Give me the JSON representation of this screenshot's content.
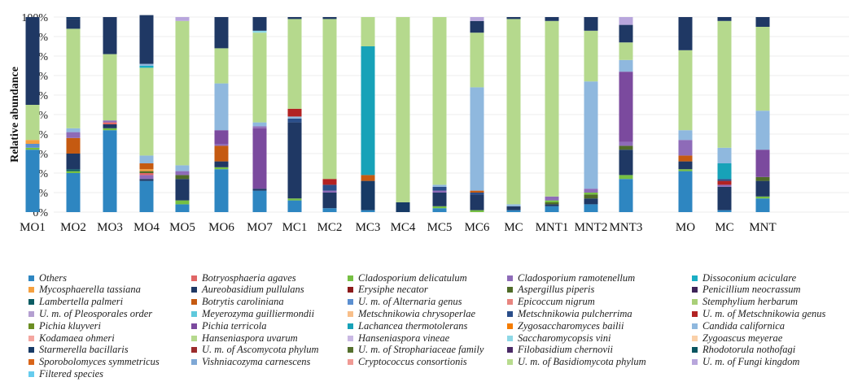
{
  "chart_data": {
    "type": "bar",
    "stacked": true,
    "ylabel": "Relative abundance",
    "yticks": [
      "0%",
      "10%",
      "20%",
      "30%",
      "40%",
      "50%",
      "60%",
      "70%",
      "80%",
      "90%",
      "100%"
    ],
    "ylim": [
      0,
      100
    ],
    "categories": [
      "MO1",
      "MO2",
      "MO3",
      "MO4",
      "MO5",
      "MO6",
      "MO7",
      "MC1",
      "MC2",
      "MC3",
      "MC4",
      "MC5",
      "MC6",
      "MC",
      "MNT1",
      "MNT2",
      "MNT3",
      "MO",
      "MC",
      "MNT"
    ],
    "species": [
      {
        "name": "Others",
        "color": "#2e86c1"
      },
      {
        "name": "Botryosphaeria agaves",
        "color": "#e06666"
      },
      {
        "name": "Cladosporium delicatulum",
        "color": "#76c043"
      },
      {
        "name": "Cladosporium ramotenellum",
        "color": "#8e6bb8"
      },
      {
        "name": "Dissoconium aciculare",
        "color": "#1aaec4"
      },
      {
        "name": "Mycosphaerella tassiana",
        "color": "#f5a040"
      },
      {
        "name": "Aureobasidium pullulans",
        "color": "#1f3864"
      },
      {
        "name": "Erysiphe necator",
        "color": "#8b1a1a"
      },
      {
        "name": "Aspergillus piperis",
        "color": "#4f6b28"
      },
      {
        "name": "Penicillium neocrassum",
        "color": "#3d2358"
      },
      {
        "name": "Lambertella palmeri",
        "color": "#0c5c63"
      },
      {
        "name": "Botrytis caroliniana",
        "color": "#c55a11"
      },
      {
        "name": "U. m. of Alternaria genus",
        "color": "#5b8fd0"
      },
      {
        "name": "Epicoccum nigrum",
        "color": "#e8857f"
      },
      {
        "name": "Stemphylium herbarum",
        "color": "#a9cf78"
      },
      {
        "name": "U. m. of Pleosporales order",
        "color": "#b49fd1"
      },
      {
        "name": "Meyerozyma guilliermondii",
        "color": "#5fc9dc"
      },
      {
        "name": "Metschnikowia chrysoperlae",
        "color": "#f8bf8a"
      },
      {
        "name": "Metschnikowia pulcherrima",
        "color": "#2a4e8a"
      },
      {
        "name": "U. m. of Metschnikowia genus",
        "color": "#b22222"
      },
      {
        "name": "Pichia kluyveri",
        "color": "#6b8e23"
      },
      {
        "name": "Pichia terricola",
        "color": "#7b4a9e"
      },
      {
        "name": "Lachancea thermotolerans",
        "color": "#17a2b8"
      },
      {
        "name": "Zygosaccharomyces bailii",
        "color": "#f57c00"
      },
      {
        "name": "Candida californica",
        "color": "#8fb8de"
      },
      {
        "name": "Kodamaea ohmeri",
        "color": "#f4a6a0"
      },
      {
        "name": "Hanseniaspora uvarum",
        "color": "#b5d98d"
      },
      {
        "name": "Hanseniaspora vineae",
        "color": "#c9b8e3"
      },
      {
        "name": "Saccharomycopsis vini",
        "color": "#8ed8e6"
      },
      {
        "name": "Zygoascus meyerae",
        "color": "#fad0a8"
      },
      {
        "name": "Starmerella bacillaris",
        "color": "#173a66"
      },
      {
        "name": "U. m. of Ascomycota phylum",
        "color": "#9b2c2c"
      },
      {
        "name": "U. m. of Strophariaceae family",
        "color": "#55702e"
      },
      {
        "name": "Filobasidium chernovii",
        "color": "#4a2a66"
      },
      {
        "name": "Rhodotorula nothofagi",
        "color": "#0a5560"
      },
      {
        "name": "Sporobolomyces symmetricus",
        "color": "#d9651a"
      },
      {
        "name": "Vishniacozyma carnescens",
        "color": "#7fa8d6"
      },
      {
        "name": "Cryptococcus consortionis",
        "color": "#f09a94"
      },
      {
        "name": "U. m. of Basidiomycota phylum",
        "color": "#b8dc8e"
      },
      {
        "name": "U. m. of Fungi kingdom",
        "color": "#b8a6dc"
      },
      {
        "name": "Filtered species",
        "color": "#66ccee"
      }
    ],
    "bars": [
      [
        [
          "Others",
          32
        ],
        [
          "Cladosporium delicatulum",
          1
        ],
        [
          "U. m. of Alternaria genus",
          2
        ],
        [
          "Mycosphaerella tassiana",
          2
        ],
        [
          "Hanseniaspora uvarum",
          18
        ],
        [
          "Aureobasidium pullulans",
          45
        ]
      ],
      [
        [
          "Others",
          20
        ],
        [
          "Cladosporium delicatulum",
          1
        ],
        [
          "Lambertella palmeri",
          1
        ],
        [
          "Aureobasidium pullulans",
          8
        ],
        [
          "Botrytis caroliniana",
          8
        ],
        [
          "Cladosporium ramotenellum",
          3
        ],
        [
          "Candida californica",
          2
        ],
        [
          "Hanseniaspora uvarum",
          51
        ],
        [
          "Aureobasidium pullulans",
          5
        ],
        [
          "Starmerella bacillaris",
          1
        ]
      ],
      [
        [
          "Others",
          42
        ],
        [
          "Cladosporium delicatulum",
          1
        ],
        [
          "Aureobasidium pullulans",
          2
        ],
        [
          "Botryosphaeria agaves",
          1
        ],
        [
          "Cladosporium ramotenellum",
          1
        ],
        [
          "Hanseniaspora uvarum",
          34
        ],
        [
          "Aureobasidium pullulans",
          19
        ]
      ],
      [
        [
          "Others",
          16
        ],
        [
          "Aureobasidium pullulans",
          1
        ],
        [
          "Cladosporium ramotenellum",
          2
        ],
        [
          "Botryosphaeria agaves",
          1
        ],
        [
          "Aspergillus piperis",
          1
        ],
        [
          "Mycosphaerella tassiana",
          1
        ],
        [
          "Botrytis caroliniana",
          3
        ],
        [
          "Candida californica",
          4
        ],
        [
          "Hanseniaspora uvarum",
          45
        ],
        [
          "Dissoconium aciculare",
          1
        ],
        [
          "Candida californica",
          1
        ],
        [
          "Aureobasidium pullulans",
          25
        ]
      ],
      [
        [
          "Others",
          4
        ],
        [
          "Cladosporium delicatulum",
          2
        ],
        [
          "Aureobasidium pullulans",
          11
        ],
        [
          "Aspergillus piperis",
          2
        ],
        [
          "Cladosporium ramotenellum",
          2
        ],
        [
          "Candida californica",
          3
        ],
        [
          "Hanseniaspora uvarum",
          74
        ],
        [
          "U. m. of Fungi kingdom",
          2
        ]
      ],
      [
        [
          "Others",
          22
        ],
        [
          "Cladosporium delicatulum",
          1
        ],
        [
          "Aureobasidium pullulans",
          3
        ],
        [
          "Botrytis caroliniana",
          8
        ],
        [
          "Cladosporium ramotenellum",
          1
        ],
        [
          "Pichia terricola",
          7
        ],
        [
          "Candida californica",
          24
        ],
        [
          "Hanseniaspora uvarum",
          18
        ],
        [
          "Aureobasidium pullulans",
          16
        ]
      ],
      [
        [
          "Others",
          11
        ],
        [
          "Aureobasidium pullulans",
          1
        ],
        [
          "Pichia terricola",
          31
        ],
        [
          "Cladosporium ramotenellum",
          1
        ],
        [
          "Candida californica",
          2
        ],
        [
          "Hanseniaspora uvarum",
          46
        ],
        [
          "Saccharomycopsis vini",
          1
        ],
        [
          "Aureobasidium pullulans",
          7
        ]
      ],
      [
        [
          "Others",
          6
        ],
        [
          "Cladosporium delicatulum",
          1
        ],
        [
          "Aureobasidium pullulans",
          39
        ],
        [
          "Metschnikowia pulcherrima",
          2
        ],
        [
          "Candida californica",
          1
        ],
        [
          "U. m. of Metschnikowia genus",
          4
        ],
        [
          "Hanseniaspora uvarum",
          46
        ],
        [
          "Aureobasidium pullulans",
          1
        ]
      ],
      [
        [
          "Others",
          2
        ],
        [
          "Aureobasidium pullulans",
          8
        ],
        [
          "Cladosporium ramotenellum",
          1
        ],
        [
          "Metschnikowia pulcherrima",
          3
        ],
        [
          "U. m. of Metschnikowia genus",
          3
        ],
        [
          "Hanseniaspora uvarum",
          82
        ],
        [
          "Aureobasidium pullulans",
          1
        ]
      ],
      [
        [
          "Others",
          1
        ],
        [
          "Starmerella bacillaris",
          15
        ],
        [
          "Botrytis caroliniana",
          3
        ],
        [
          "Lachancea thermotolerans",
          66
        ],
        [
          "Hanseniaspora uvarum",
          15
        ]
      ],
      [
        [
          "Starmerella bacillaris",
          5
        ],
        [
          "Hanseniaspora uvarum",
          95
        ]
      ],
      [
        [
          "Others",
          2
        ],
        [
          "Cladosporium delicatulum",
          1
        ],
        [
          "Aureobasidium pullulans",
          7
        ],
        [
          "Cladosporium ramotenellum",
          1
        ],
        [
          "Metschnikowia pulcherrima",
          2
        ],
        [
          "Candida californica",
          1
        ],
        [
          "Hanseniaspora uvarum",
          86
        ]
      ],
      [
        [
          "Cladosporium delicatulum",
          1
        ],
        [
          "Aureobasidium pullulans",
          8
        ],
        [
          "Metschnikowia pulcherrima",
          1
        ],
        [
          "Botrytis caroliniana",
          1
        ],
        [
          "Candida californica",
          53
        ],
        [
          "Hanseniaspora uvarum",
          28
        ],
        [
          "Aureobasidium pullulans",
          6
        ],
        [
          "U. m. of Fungi kingdom",
          2
        ]
      ],
      [
        [
          "Others",
          1
        ],
        [
          "Aureobasidium pullulans",
          2
        ],
        [
          "Candida californica",
          1
        ],
        [
          "Hanseniaspora uvarum",
          95
        ],
        [
          "Aureobasidium pullulans",
          1
        ]
      ],
      [
        [
          "Others",
          3
        ],
        [
          "Aureobasidium pullulans",
          1
        ],
        [
          "Aspergillus piperis",
          1
        ],
        [
          "Cladosporium delicatulum",
          1
        ],
        [
          "Cladosporium ramotenellum",
          2
        ],
        [
          "Hanseniaspora uvarum",
          90
        ],
        [
          "Aureobasidium pullulans",
          2
        ]
      ],
      [
        [
          "Others",
          4
        ],
        [
          "Aureobasidium pullulans",
          3
        ],
        [
          "Aspergillus piperis",
          2
        ],
        [
          "Cladosporium delicatulum",
          1
        ],
        [
          "Cladosporium ramotenellum",
          2
        ],
        [
          "Candida californica",
          55
        ],
        [
          "Hanseniaspora uvarum",
          26
        ],
        [
          "Aureobasidium pullulans",
          7
        ]
      ],
      [
        [
          "Others",
          17
        ],
        [
          "Cladosporium delicatulum",
          2
        ],
        [
          "Aureobasidium pullulans",
          13
        ],
        [
          "Aspergillus piperis",
          2
        ],
        [
          "Cladosporium ramotenellum",
          2
        ],
        [
          "Pichia terricola",
          36
        ],
        [
          "Candida californica",
          6
        ],
        [
          "Hanseniaspora uvarum",
          9
        ],
        [
          "Aureobasidium pullulans",
          9
        ],
        [
          "U. m. of Fungi kingdom",
          4
        ]
      ],
      [
        [
          "Others",
          21
        ],
        [
          "Cladosporium delicatulum",
          1
        ],
        [
          "Aureobasidium pullulans",
          4
        ],
        [
          "Botrytis caroliniana",
          3
        ],
        [
          "Cladosporium ramotenellum",
          8
        ],
        [
          "Candida californica",
          5
        ],
        [
          "Hanseniaspora uvarum",
          41
        ],
        [
          "Aureobasidium pullulans",
          17
        ]
      ],
      [
        [
          "Others",
          1
        ],
        [
          "Aureobasidium pullulans",
          12
        ],
        [
          "Cladosporium ramotenellum",
          1
        ],
        [
          "U. m. of Metschnikowia genus",
          2
        ],
        [
          "Metschnikowia pulcherrima",
          1
        ],
        [
          "Lachancea thermotolerans",
          8
        ],
        [
          "Candida californica",
          8
        ],
        [
          "Hanseniaspora uvarum",
          65
        ],
        [
          "Aureobasidium pullulans",
          2
        ]
      ],
      [
        [
          "Others",
          7
        ],
        [
          "Cladosporium delicatulum",
          1
        ],
        [
          "Aureobasidium pullulans",
          8
        ],
        [
          "Aspergillus piperis",
          2
        ],
        [
          "Pichia terricola",
          14
        ],
        [
          "Candida californica",
          20
        ],
        [
          "Hanseniaspora uvarum",
          43
        ],
        [
          "Aureobasidium pullulans",
          5
        ]
      ]
    ]
  }
}
